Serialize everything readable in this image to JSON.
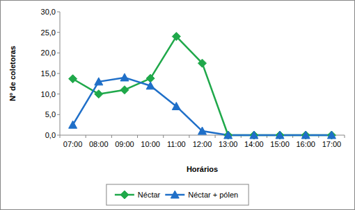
{
  "chart_data": {
    "type": "line",
    "x_label": "Horários",
    "y_label": "Nº de coletoras",
    "categories": [
      "07:00",
      "08:00",
      "09:00",
      "10:00",
      "11:00",
      "12:00",
      "13:00",
      "14:00",
      "15:00",
      "16:00",
      "17:00"
    ],
    "series": [
      {
        "name": "Néctar",
        "color": "#1fa84a",
        "marker": "diamond",
        "values": [
          13.7,
          10.0,
          11.0,
          13.8,
          24.0,
          17.5,
          0,
          0,
          0,
          0,
          0
        ]
      },
      {
        "name": "Néctar + pólen",
        "color": "#1f6fc8",
        "marker": "triangle",
        "values": [
          2.5,
          13.0,
          14.0,
          12.0,
          7.0,
          1.0,
          0,
          0,
          0,
          0,
          0
        ]
      }
    ],
    "ylim": [
      0,
      30
    ],
    "yticks": [
      {
        "value": 0,
        "label": "0,0"
      },
      {
        "value": 5,
        "label": "5,0"
      },
      {
        "value": 10,
        "label": "10,0"
      },
      {
        "value": 15,
        "label": "15,0"
      },
      {
        "value": 20,
        "label": "20,0"
      },
      {
        "value": 25,
        "label": "25,0"
      },
      {
        "value": 30,
        "label": "30,0"
      }
    ],
    "grid": false,
    "legend": "bottom"
  }
}
